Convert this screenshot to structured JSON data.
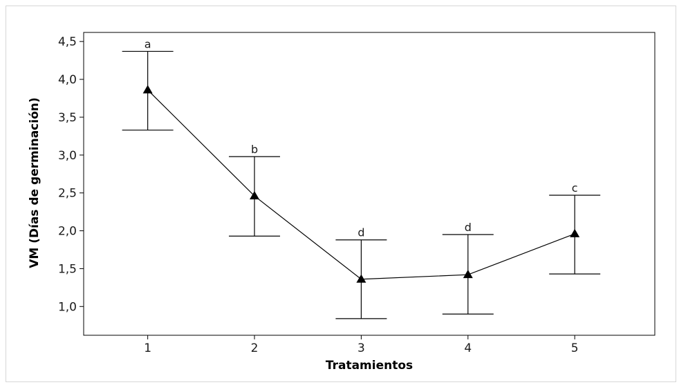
{
  "chart_data": {
    "type": "line",
    "xlabel": "Tratamientos",
    "ylabel": "VM (Días de germinación)",
    "x": [
      1,
      2,
      3,
      4,
      5
    ],
    "x_tick_labels": [
      "1",
      "2",
      "3",
      "4",
      "5"
    ],
    "xlim": [
      0.4,
      5.75
    ],
    "ylim": [
      0.62,
      4.62
    ],
    "y_ticks": [
      1.0,
      1.5,
      2.0,
      2.5,
      3.0,
      3.5,
      4.0,
      4.5
    ],
    "y_tick_labels": [
      "1,0",
      "1,5",
      "2,0",
      "2,5",
      "3,0",
      "3,5",
      "4,0",
      "4,5"
    ],
    "series": [
      {
        "values": [
          3.86,
          2.46,
          1.36,
          1.42,
          1.96
        ],
        "error_upper": [
          4.37,
          2.98,
          1.88,
          1.95,
          2.47
        ],
        "error_lower": [
          3.33,
          1.93,
          0.84,
          0.9,
          1.43
        ],
        "significance_labels": [
          "a",
          "b",
          "d",
          "d",
          "c"
        ],
        "marker": "triangle",
        "color": "#000000"
      }
    ],
    "grid": false,
    "legend": "none"
  }
}
